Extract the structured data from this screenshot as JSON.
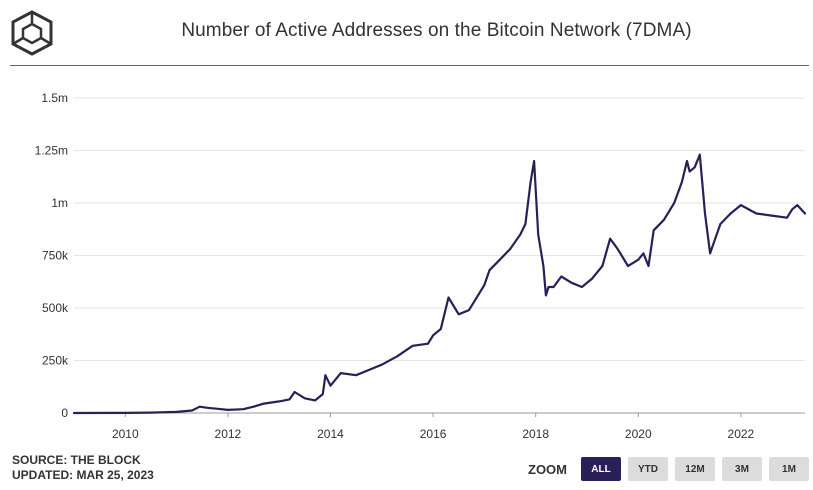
{
  "header": {
    "title": "Number of Active Addresses on the Bitcoin Network (7DMA)",
    "logo_icon": "cube-logo-icon"
  },
  "footer": {
    "source": "SOURCE: THE BLOCK",
    "updated": "UPDATED: MAR 25, 2023"
  },
  "zoom": {
    "label": "ZOOM",
    "buttons": [
      {
        "label": "ALL",
        "active": true
      },
      {
        "label": "YTD",
        "active": false
      },
      {
        "label": "12M",
        "active": false
      },
      {
        "label": "3M",
        "active": false
      },
      {
        "label": "1M",
        "active": false
      }
    ]
  },
  "colors": {
    "line": "#2a1f57",
    "accent": "#8a3fd6",
    "active_button": "#2a1f57",
    "grid": "#e6e6e6"
  },
  "chart_data": {
    "type": "line",
    "title": "Number of Active Addresses on the Bitcoin Network (7DMA)",
    "xlabel": "",
    "ylabel": "",
    "xlim": [
      2009.0,
      2023.25
    ],
    "ylim": [
      0,
      1500000
    ],
    "x_ticks": [
      2010,
      2012,
      2014,
      2016,
      2018,
      2020,
      2022
    ],
    "x_tick_labels": [
      "2010",
      "2012",
      "2014",
      "2016",
      "2018",
      "2020",
      "2022"
    ],
    "y_ticks": [
      0,
      250000,
      500000,
      750000,
      1000000,
      1250000,
      1500000
    ],
    "y_tick_labels": [
      "0",
      "250k",
      "500k",
      "750k",
      "1m",
      "1.25m",
      "1.5m"
    ],
    "grid": true,
    "series": [
      {
        "x": [
          2009.0,
          2010.0,
          2010.5,
          2011.0,
          2011.3,
          2011.45,
          2011.6,
          2011.8,
          2012.0,
          2012.3,
          2012.5,
          2012.7,
          2013.0,
          2013.2,
          2013.3,
          2013.5,
          2013.7,
          2013.85,
          2013.9,
          2014.0,
          2014.1,
          2014.2,
          2014.5,
          2014.8,
          2015.0,
          2015.3,
          2015.6,
          2015.9,
          2016.0,
          2016.15,
          2016.3,
          2016.5,
          2016.7,
          2016.9,
          2017.0,
          2017.1,
          2017.3,
          2017.5,
          2017.7,
          2017.8,
          2017.9,
          2017.97,
          2018.05,
          2018.15,
          2018.2,
          2018.25,
          2018.35,
          2018.5,
          2018.7,
          2018.9,
          2019.1,
          2019.3,
          2019.45,
          2019.6,
          2019.8,
          2020.0,
          2020.1,
          2020.2,
          2020.3,
          2020.5,
          2020.7,
          2020.85,
          2020.95,
          2021.0,
          2021.1,
          2021.2,
          2021.3,
          2021.4,
          2021.5,
          2021.6,
          2021.8,
          2022.0,
          2022.3,
          2022.6,
          2022.9,
          2023.0,
          2023.1,
          2023.25
        ],
        "y": [
          0,
          500,
          2000,
          5000,
          12000,
          30000,
          25000,
          20000,
          15000,
          18000,
          30000,
          45000,
          55000,
          65000,
          100000,
          70000,
          60000,
          90000,
          180000,
          130000,
          160000,
          190000,
          180000,
          210000,
          230000,
          270000,
          320000,
          330000,
          370000,
          400000,
          550000,
          470000,
          490000,
          570000,
          610000,
          680000,
          730000,
          780000,
          850000,
          900000,
          1100000,
          1200000,
          850000,
          700000,
          560000,
          600000,
          600000,
          650000,
          620000,
          600000,
          640000,
          700000,
          830000,
          780000,
          700000,
          730000,
          760000,
          700000,
          870000,
          920000,
          1000000,
          1100000,
          1200000,
          1150000,
          1170000,
          1230000,
          950000,
          760000,
          830000,
          900000,
          950000,
          990000,
          950000,
          940000,
          930000,
          970000,
          990000,
          950000
        ]
      }
    ]
  }
}
